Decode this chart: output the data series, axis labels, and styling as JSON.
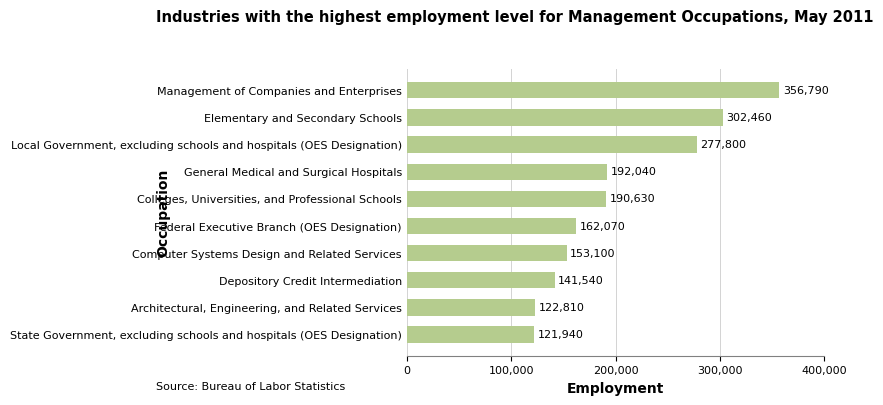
{
  "title": "Industries with the highest employment level for Management Occupations, May 2011",
  "categories": [
    "State Government, excluding schools and hospitals (OES Designation)",
    "Architectural, Engineering, and Related Services",
    "Depository Credit Intermediation",
    "Computer Systems Design and Related Services",
    "Federal Executive Branch (OES Designation)",
    "Colleges, Universities, and Professional Schools",
    "General Medical and Surgical Hospitals",
    "Local Government, excluding schools and hospitals (OES Designation)",
    "Elementary and Secondary Schools",
    "Management of Companies and Enterprises"
  ],
  "values": [
    121940,
    122810,
    141540,
    153100,
    162070,
    190630,
    192040,
    277800,
    302460,
    356790
  ],
  "labels": [
    "121,940",
    "122,810",
    "141,540",
    "153,100",
    "162,070",
    "190,630",
    "192,040",
    "277,800",
    "302,460",
    "356,790"
  ],
  "bar_color": "#b5cc8e",
  "xlabel": "Employment",
  "ylabel": "Occupation",
  "xlim": [
    0,
    400000
  ],
  "xticks": [
    0,
    100000,
    200000,
    300000,
    400000
  ],
  "xtick_labels": [
    "0",
    "100,000",
    "200,000",
    "300,000",
    "400,000"
  ],
  "source": "Source: Bureau of Labor Statistics",
  "title_fontsize": 10.5,
  "label_fontsize": 8,
  "axis_label_fontsize": 10,
  "tick_fontsize": 8,
  "source_fontsize": 8
}
